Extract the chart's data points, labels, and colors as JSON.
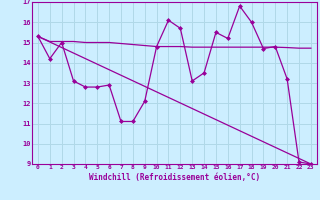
{
  "xlabel": "Windchill (Refroidissement éolien,°C)",
  "bg_color": "#cceeff",
  "line_color": "#990099",
  "grid_color": "#b0d8e8",
  "xlim": [
    -0.5,
    23.5
  ],
  "ylim": [
    9,
    17
  ],
  "yticks": [
    9,
    10,
    11,
    12,
    13,
    14,
    15,
    16,
    17
  ],
  "xticks": [
    0,
    1,
    2,
    3,
    4,
    5,
    6,
    7,
    8,
    9,
    10,
    11,
    12,
    13,
    14,
    15,
    16,
    17,
    18,
    19,
    20,
    21,
    22,
    23
  ],
  "line1_x": [
    0,
    1,
    2,
    3,
    4,
    5,
    6,
    7,
    8,
    9,
    10,
    11,
    12,
    13,
    14,
    15,
    16,
    17,
    18,
    19,
    20,
    21,
    22,
    23
  ],
  "line1_y": [
    15.3,
    14.2,
    15.0,
    13.1,
    12.8,
    12.8,
    12.9,
    11.1,
    11.1,
    12.1,
    14.8,
    16.1,
    15.7,
    13.1,
    13.5,
    15.5,
    15.2,
    16.8,
    16.0,
    14.7,
    14.8,
    13.2,
    9.1,
    9.0
  ],
  "line2_x": [
    0,
    1,
    2,
    3,
    4,
    5,
    6,
    7,
    8,
    9,
    10,
    11,
    12,
    13,
    14,
    15,
    16,
    17,
    18,
    19,
    20,
    21,
    22,
    23
  ],
  "line2_y": [
    15.3,
    15.05,
    15.05,
    15.05,
    15.0,
    15.0,
    15.0,
    14.95,
    14.9,
    14.85,
    14.8,
    14.8,
    14.8,
    14.77,
    14.77,
    14.77,
    14.77,
    14.77,
    14.77,
    14.77,
    14.77,
    14.75,
    14.72,
    14.72
  ],
  "line3_x": [
    0,
    23
  ],
  "line3_y": [
    15.3,
    9.0
  ]
}
